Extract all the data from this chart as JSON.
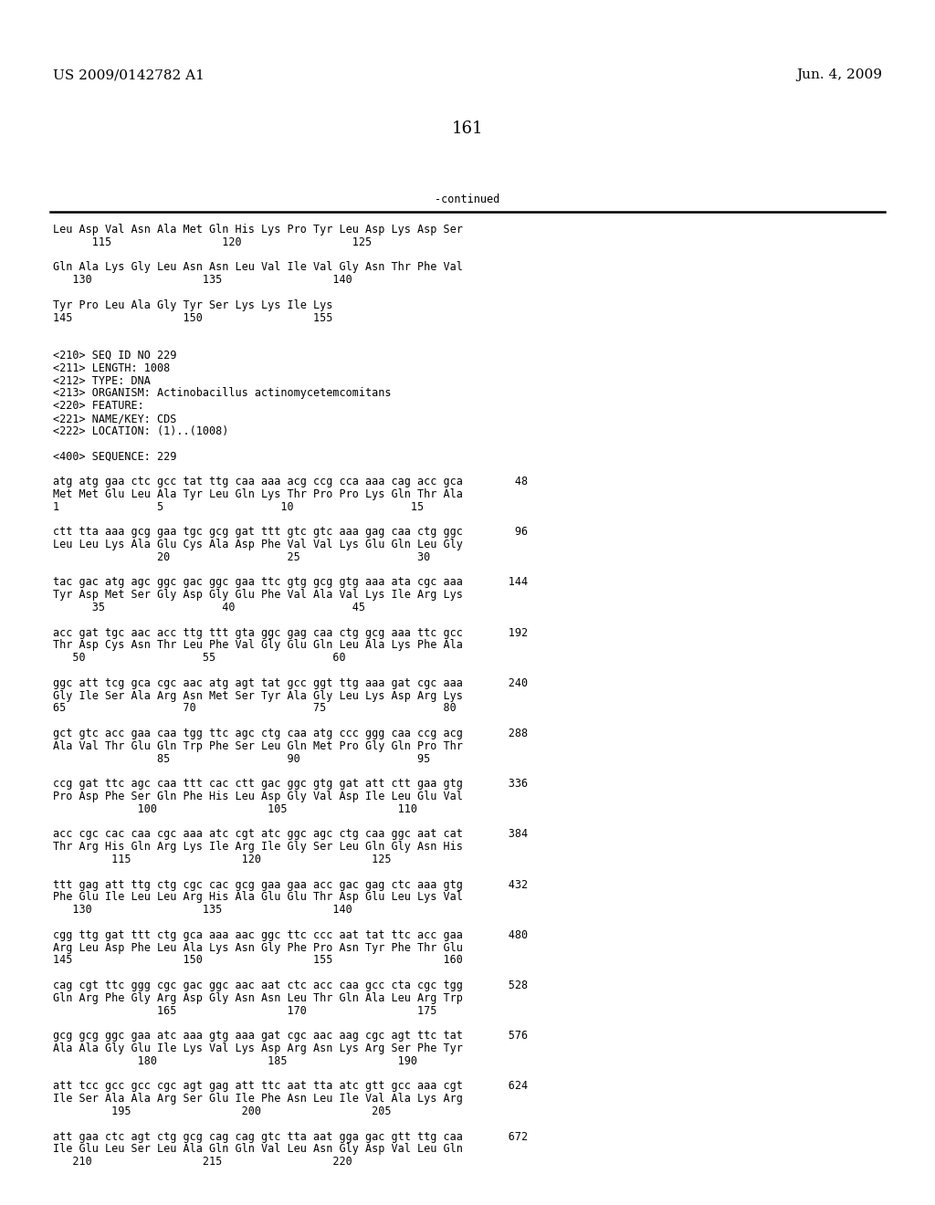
{
  "header_left": "US 2009/0142782 A1",
  "header_right": "Jun. 4, 2009",
  "page_number": "161",
  "continued_label": "-continued",
  "background_color": "#ffffff",
  "text_color": "#000000",
  "font_size_header": 11,
  "font_size_page": 13,
  "font_size_body": 8.5,
  "lines": [
    "Leu Asp Val Asn Ala Met Gln His Lys Pro Tyr Leu Asp Lys Asp Ser",
    "      115                 120                 125",
    "",
    "Gln Ala Lys Gly Leu Asn Asn Leu Val Ile Val Gly Asn Thr Phe Val",
    "   130                 135                 140",
    "",
    "Tyr Pro Leu Ala Gly Tyr Ser Lys Lys Ile Lys",
    "145                 150                 155",
    "",
    "",
    "<210> SEQ ID NO 229",
    "<211> LENGTH: 1008",
    "<212> TYPE: DNA",
    "<213> ORGANISM: Actinobacillus actinomycetemcomitans",
    "<220> FEATURE:",
    "<221> NAME/KEY: CDS",
    "<222> LOCATION: (1)..(1008)",
    "",
    "<400> SEQUENCE: 229",
    "",
    "atg atg gaa ctc gcc tat ttg caa aaa acg ccg cca aaa cag acc gca        48",
    "Met Met Glu Leu Ala Tyr Leu Gln Lys Thr Pro Pro Lys Gln Thr Ala",
    "1               5                  10                  15",
    "",
    "ctt tta aaa gcg gaa tgc gcg gat ttt gtc gtc aaa gag caa ctg ggc        96",
    "Leu Leu Lys Ala Glu Cys Ala Asp Phe Val Val Lys Glu Gln Leu Gly",
    "                20                  25                  30",
    "",
    "tac gac atg agc ggc gac ggc gaa ttc gtg gcg gtg aaa ata cgc aaa       144",
    "Tyr Asp Met Ser Gly Asp Gly Glu Phe Val Ala Val Lys Ile Arg Lys",
    "      35                  40                  45",
    "",
    "acc gat tgc aac acc ttg ttt gta ggc gag caa ctg gcg aaa ttc gcc       192",
    "Thr Asp Cys Asn Thr Leu Phe Val Gly Glu Gln Leu Ala Lys Phe Ala",
    "   50                  55                  60",
    "",
    "ggc att tcg gca cgc aac atg agt tat gcc ggt ttg aaa gat cgc aaa       240",
    "Gly Ile Ser Ala Arg Asn Met Ser Tyr Ala Gly Leu Lys Asp Arg Lys",
    "65                  70                  75                  80",
    "",
    "gct gtc acc gaa caa tgg ttc agc ctg caa atg ccc ggg caa ccg acg       288",
    "Ala Val Thr Glu Gln Trp Phe Ser Leu Gln Met Pro Gly Gln Pro Thr",
    "                85                  90                  95",
    "",
    "ccg gat ttc agc caa ttt cac ctt gac ggc gtg gat att ctt gaa gtg       336",
    "Pro Asp Phe Ser Gln Phe His Leu Asp Gly Val Asp Ile Leu Glu Val",
    "             100                 105                 110",
    "",
    "acc cgc cac caa cgc aaa atc cgt atc ggc agc ctg caa ggc aat cat       384",
    "Thr Arg His Gln Arg Lys Ile Arg Ile Gly Ser Leu Gln Gly Asn His",
    "         115                 120                 125",
    "",
    "ttt gag att ttg ctg cgc cac gcg gaa gaa acc gac gag ctc aaa gtg       432",
    "Phe Glu Ile Leu Leu Arg His Ala Glu Glu Thr Asp Glu Leu Lys Val",
    "   130                 135                 140",
    "",
    "cgg ttg gat ttt ctg gca aaa aac ggc ttc ccc aat tat ttc acc gaa       480",
    "Arg Leu Asp Phe Leu Ala Lys Asn Gly Phe Pro Asn Tyr Phe Thr Glu",
    "145                 150                 155                 160",
    "",
    "cag cgt ttc ggg cgc gac ggc aac aat ctc acc caa gcc cta cgc tgg       528",
    "Gln Arg Phe Gly Arg Asp Gly Asn Asn Leu Thr Gln Ala Leu Arg Trp",
    "                165                 170                 175",
    "",
    "gcg gcg ggc gaa atc aaa gtg aaa gat cgc aac aag cgc agt ttc tat       576",
    "Ala Ala Gly Glu Ile Lys Val Lys Asp Arg Asn Lys Arg Ser Phe Tyr",
    "             180                 185                 190",
    "",
    "att tcc gcc gcc cgc agt gag att ttc aat tta atc gtt gcc aaa cgt       624",
    "Ile Ser Ala Ala Arg Ser Glu Ile Phe Asn Leu Ile Val Ala Lys Arg",
    "         195                 200                 205",
    "",
    "att gaa ctc agt ctg gcg cag cag gtc tta aat gga gac gtt ttg caa       672",
    "Ile Glu Leu Ser Leu Ala Gln Gln Val Leu Asn Gly Asp Val Leu Gln",
    "   210                 215                 220"
  ]
}
